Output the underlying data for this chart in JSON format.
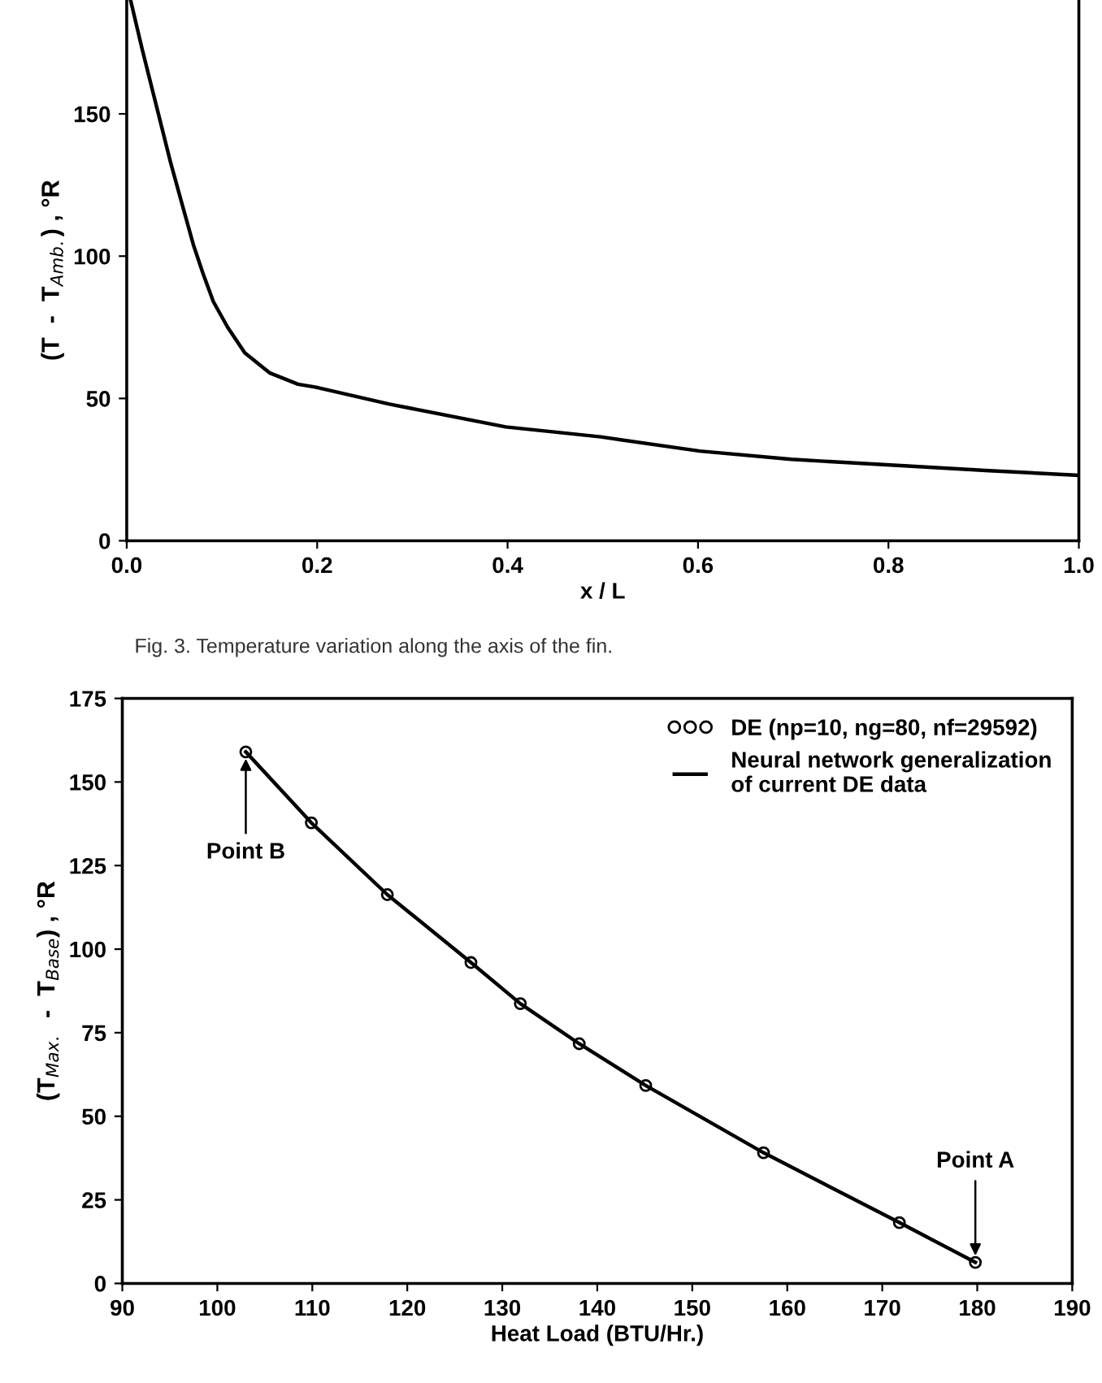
{
  "chart_data": [
    {
      "type": "line",
      "xlabel": "x / L",
      "ylabel": "(T  -  T$_{Amb.}$) , °R",
      "xlim": [
        0,
        1
      ],
      "ylim": [
        0,
        190
      ],
      "xticks": [
        {
          "value": 0,
          "label": "0.0"
        },
        0.2,
        0.4,
        0.6,
        0.8,
        {
          "value": 1,
          "label": "1.0"
        }
      ],
      "yticks": [
        0,
        50,
        100,
        150
      ],
      "grid": false,
      "legend": false,
      "marker": "none",
      "line_style": "solid",
      "annotations": [
        "Fig. 3. Temperature variation along the axis of the fin."
      ],
      "series": [
        {
          "color": "#000000",
          "x": [
            0.004,
            0.016,
            0.031,
            0.046,
            0.06,
            0.07,
            0.08,
            0.091,
            0.106,
            0.124,
            0.15,
            0.18,
            0.198,
            0.276,
            0.398,
            0.498,
            0.602,
            0.698,
            0.802,
            0.906,
            1.0
          ],
          "values": [
            190,
            173,
            153,
            133,
            116,
            104,
            94,
            84,
            75,
            66,
            59,
            55,
            54,
            48,
            40,
            36.5,
            31.5,
            28.6,
            26.6,
            24.6,
            23
          ]
        }
      ]
    },
    {
      "type": "line",
      "xlabel": "Heat Load (BTU/Hr.)",
      "ylabel": "(T$_{Max.}$  -  T$_{Base}$) , °R",
      "xlim": [
        90,
        190
      ],
      "ylim": [
        0,
        175
      ],
      "xticks": [
        90,
        100,
        110,
        120,
        130,
        140,
        150,
        160,
        170,
        180,
        190
      ],
      "yticks": [
        0,
        25,
        50,
        75,
        100,
        125,
        150,
        175
      ],
      "grid": false,
      "legend": "top right",
      "annotations": [
        {
          "text": "Point B",
          "x": 103,
          "y": 159
        },
        {
          "text": "Point A",
          "x": 179.8,
          "y": 6.3
        }
      ],
      "series": [
        {
          "type": "scatter",
          "name": "DE (np=10, ng=80, nf=29592)",
          "color": "#000000",
          "marker": "circle",
          "x": [
            103,
            109.9,
            117.9,
            126.7,
            131.9,
            138.1,
            145.1,
            157.5,
            171.8,
            179.8
          ],
          "values": [
            159,
            137.8,
            116.3,
            96,
            83.7,
            71.7,
            59.2,
            39.1,
            18.2,
            6.3
          ]
        },
        {
          "type": "line",
          "name": "Neural network generalization\nof current DE data",
          "color": "#000000",
          "marker": "none",
          "line_style": "solid",
          "x": [
            103,
            109.9,
            117.9,
            126.7,
            131.9,
            138.1,
            145.1,
            157.5,
            171.8,
            179.8
          ],
          "values": [
            159,
            137.8,
            116.3,
            96,
            83.7,
            71.7,
            59.2,
            39.1,
            18.2,
            6.3
          ]
        }
      ]
    }
  ]
}
